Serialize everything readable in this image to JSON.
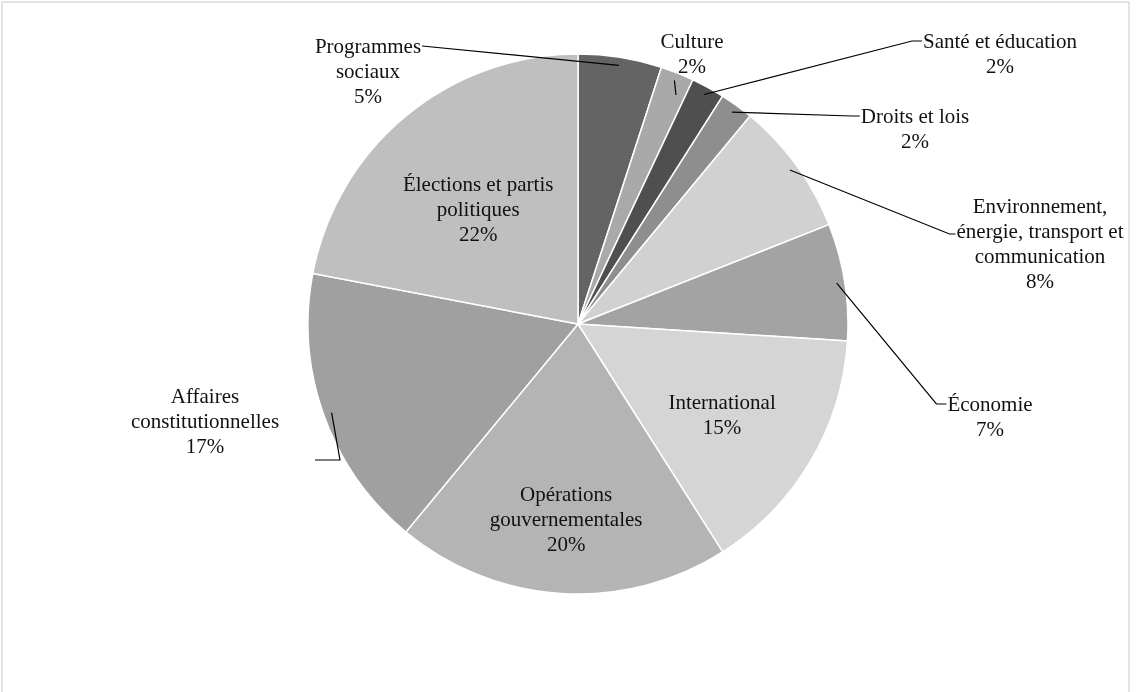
{
  "chart_data": {
    "type": "pie",
    "categories": [
      "Programmes sociaux",
      "Culture",
      "Santé et éducation",
      "Droits et lois",
      "Environnement, énergie, transport et communication",
      "Économie",
      "International",
      "Opérations gouvernementales",
      "Affaires constitutionnelles",
      "Élections et partis politiques"
    ],
    "values": [
      5,
      2,
      2,
      2,
      8,
      7,
      15,
      20,
      17,
      22
    ],
    "value_labels": [
      "5%",
      "2%",
      "2%",
      "2%",
      "8%",
      "7%",
      "15%",
      "20%",
      "17%",
      "22%"
    ],
    "colors": [
      "#646464",
      "#a9a9a9",
      "#4f4f4f",
      "#8e8e8e",
      "#d1d1d1",
      "#a3a3a3",
      "#d5d5d5",
      "#b4b4b4",
      "#a0a0a0",
      "#bfbfbf"
    ]
  }
}
